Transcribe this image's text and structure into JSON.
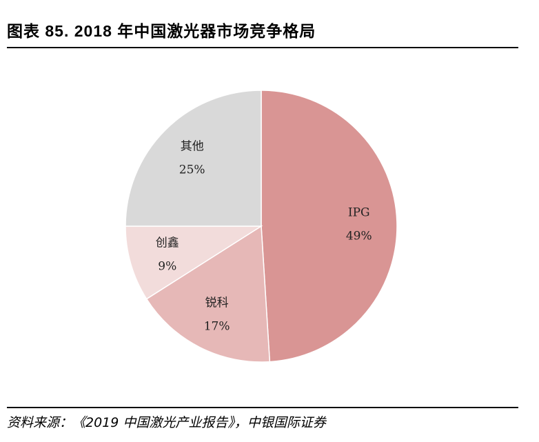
{
  "title": "图表 85. 2018 年中国激光器市场竞争格局",
  "source": "资料来源：《2019 中国激光产业报告》，中银国际证券",
  "chart_data": {
    "type": "pie",
    "title": "2018 年中国激光器市场竞争格局",
    "start": "top-clockwise",
    "slices": [
      {
        "label": "IPG",
        "value": 49,
        "display": "49%",
        "color": "#d99594"
      },
      {
        "label": "锐科",
        "value": 17,
        "display": "17%",
        "color": "#e6b8b7"
      },
      {
        "label": "创鑫",
        "value": 9,
        "display": "9%",
        "color": "#f2dcdb"
      },
      {
        "label": "其他",
        "value": 25,
        "display": "25%",
        "color": "#d9d9d9"
      }
    ]
  }
}
